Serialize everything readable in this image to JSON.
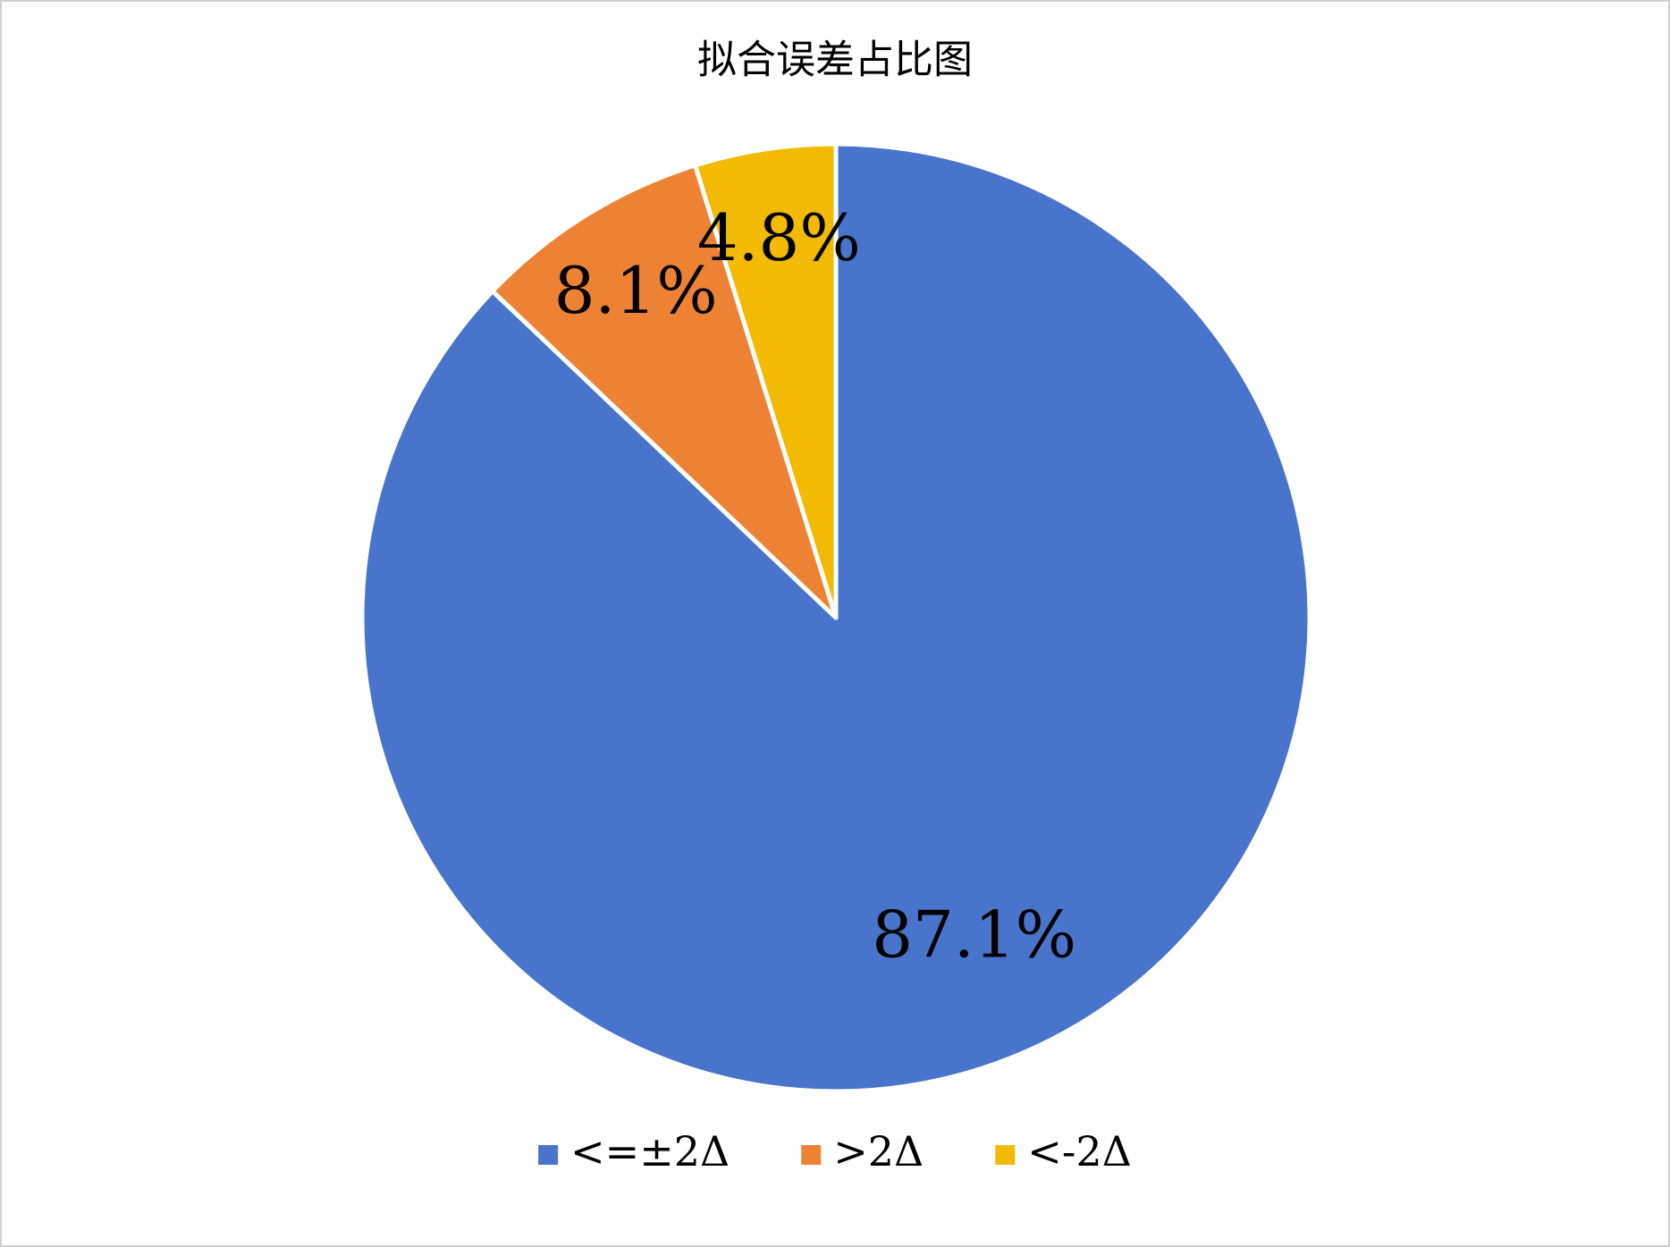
{
  "chart_data": {
    "type": "pie",
    "title": "拟合误差占比图",
    "categories": [
      "<=±2Δ",
      ">2Δ",
      "<-2Δ"
    ],
    "values": [
      87.1,
      8.1,
      4.8
    ],
    "value_labels": [
      "87.1%",
      "8.1%",
      "4.8%"
    ],
    "colors": [
      "#4874cb",
      "#ee8234",
      "#f2ba02"
    ],
    "legend": "bottom"
  }
}
